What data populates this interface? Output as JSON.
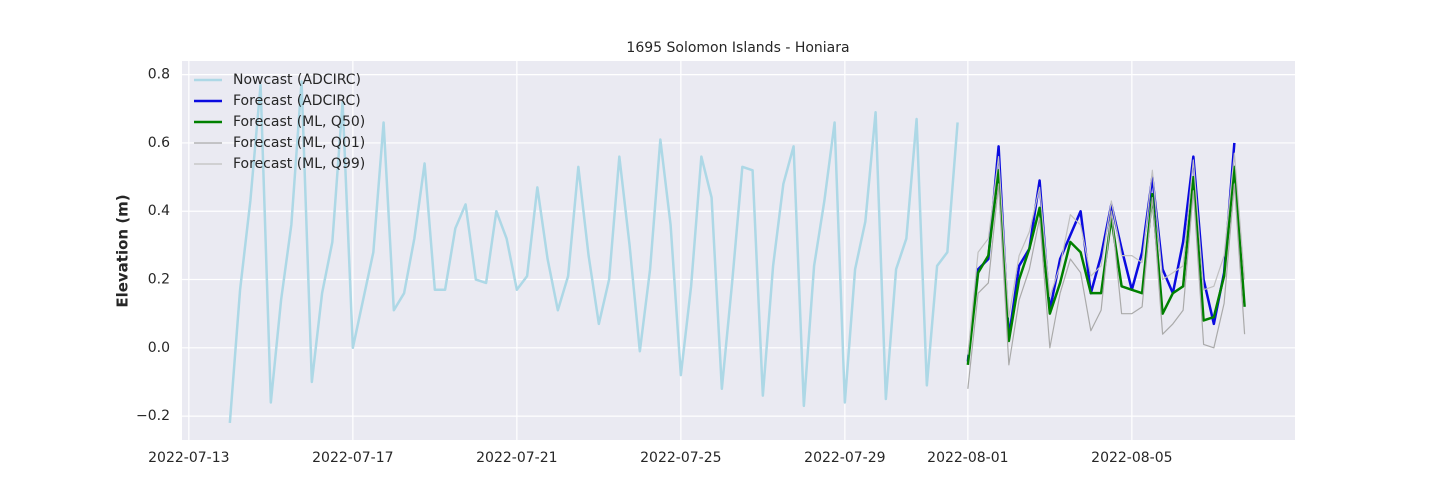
{
  "chart_data": {
    "type": "line",
    "title": "1695 Solomon Islands - Honiara",
    "y_label": "Elevation (m)",
    "xlim": [
      "2022-07-12 20:00",
      "2022-08-08 23:30"
    ],
    "xticks": [
      "2022-07-13",
      "2022-07-17",
      "2022-07-21",
      "2022-07-25",
      "2022-07-29",
      "2022-08-01",
      "2022-08-05"
    ],
    "ylim": [
      -0.27,
      0.84
    ],
    "yticks": [
      {
        "value": -0.2,
        "label": "−0.2"
      },
      {
        "value": 0,
        "label": "0.0"
      },
      0.2,
      0.4,
      0.6,
      0.8
    ],
    "grid": true,
    "legend": "upper-left",
    "series": [
      {
        "name": "Nowcast (ADCIRC)",
        "color": "#add8e6",
        "width": 2.5,
        "x": [
          "2022-07-14 00:00",
          "2022-07-14 06:00",
          "2022-07-14 12:00",
          "2022-07-14 18:00",
          "2022-07-15 00:00",
          "2022-07-15 06:00",
          "2022-07-15 12:00",
          "2022-07-15 18:00",
          "2022-07-16 00:00",
          "2022-07-16 06:00",
          "2022-07-16 12:00",
          "2022-07-16 18:00",
          "2022-07-17 00:00",
          "2022-07-17 06:00",
          "2022-07-17 12:00",
          "2022-07-17 18:00",
          "2022-07-18 00:00",
          "2022-07-18 06:00",
          "2022-07-18 12:00",
          "2022-07-18 18:00",
          "2022-07-19 00:00",
          "2022-07-19 06:00",
          "2022-07-19 12:00",
          "2022-07-19 18:00",
          "2022-07-20 00:00",
          "2022-07-20 06:00",
          "2022-07-20 12:00",
          "2022-07-20 18:00",
          "2022-07-21 00:00",
          "2022-07-21 06:00",
          "2022-07-21 12:00",
          "2022-07-21 18:00",
          "2022-07-22 00:00",
          "2022-07-22 06:00",
          "2022-07-22 12:00",
          "2022-07-22 18:00",
          "2022-07-23 00:00",
          "2022-07-23 06:00",
          "2022-07-23 12:00",
          "2022-07-23 18:00",
          "2022-07-24 00:00",
          "2022-07-24 06:00",
          "2022-07-24 12:00",
          "2022-07-24 18:00",
          "2022-07-25 00:00",
          "2022-07-25 06:00",
          "2022-07-25 12:00",
          "2022-07-25 18:00",
          "2022-07-26 00:00",
          "2022-07-26 06:00",
          "2022-07-26 12:00",
          "2022-07-26 18:00",
          "2022-07-27 00:00",
          "2022-07-27 06:00",
          "2022-07-27 12:00",
          "2022-07-27 18:00",
          "2022-07-28 00:00",
          "2022-07-28 06:00",
          "2022-07-28 12:00",
          "2022-07-28 18:00",
          "2022-07-29 00:00",
          "2022-07-29 06:00",
          "2022-07-29 12:00",
          "2022-07-29 18:00",
          "2022-07-30 00:00",
          "2022-07-30 06:00",
          "2022-07-30 12:00",
          "2022-07-30 18:00",
          "2022-07-31 00:00",
          "2022-07-31 06:00",
          "2022-07-31 12:00",
          "2022-07-31 18:00"
        ],
        "values": [
          -0.22,
          0.17,
          0.43,
          0.77,
          -0.16,
          0.14,
          0.36,
          0.78,
          -0.1,
          0.16,
          0.31,
          0.72,
          0.0,
          0.14,
          0.28,
          0.66,
          0.11,
          0.16,
          0.32,
          0.54,
          0.17,
          0.17,
          0.35,
          0.42,
          0.2,
          0.19,
          0.4,
          0.32,
          0.17,
          0.21,
          0.47,
          0.26,
          0.11,
          0.21,
          0.53,
          0.27,
          0.07,
          0.2,
          0.56,
          0.3,
          -0.01,
          0.23,
          0.61,
          0.36,
          -0.08,
          0.18,
          0.56,
          0.44,
          -0.12,
          0.19,
          0.53,
          0.52,
          -0.14,
          0.24,
          0.48,
          0.59,
          -0.17,
          0.24,
          0.43,
          0.66,
          -0.16,
          0.23,
          0.37,
          0.69,
          -0.15,
          0.23,
          0.32,
          0.67,
          -0.11,
          0.24,
          0.28,
          0.66
        ]
      },
      {
        "name": "Forecast (ADCIRC)",
        "color": "#0a0ae0",
        "width": 2.5,
        "x": [
          "2022-08-01 00:00",
          "2022-08-01 06:00",
          "2022-08-01 12:00",
          "2022-08-01 18:00",
          "2022-08-02 00:00",
          "2022-08-02 06:00",
          "2022-08-02 12:00",
          "2022-08-02 18:00",
          "2022-08-03 00:00",
          "2022-08-03 06:00",
          "2022-08-03 12:00",
          "2022-08-03 18:00",
          "2022-08-04 00:00",
          "2022-08-04 06:00",
          "2022-08-04 12:00",
          "2022-08-04 18:00",
          "2022-08-05 00:00",
          "2022-08-05 06:00",
          "2022-08-05 12:00",
          "2022-08-05 18:00",
          "2022-08-06 00:00",
          "2022-08-06 06:00",
          "2022-08-06 12:00",
          "2022-08-06 18:00",
          "2022-08-07 00:00",
          "2022-08-07 06:00",
          "2022-08-07 12:00",
          "2022-08-07 18:00"
        ],
        "values": [
          -0.04,
          0.23,
          0.26,
          0.59,
          0.03,
          0.24,
          0.29,
          0.49,
          0.11,
          0.26,
          0.33,
          0.4,
          0.16,
          0.27,
          0.42,
          0.29,
          0.17,
          0.28,
          0.5,
          0.23,
          0.16,
          0.31,
          0.56,
          0.2,
          0.07,
          0.22,
          0.6,
          null
        ]
      },
      {
        "name": "Forecast (ML, Q50)",
        "color": "#008000",
        "width": 2.5,
        "x": [
          "2022-08-01 00:00",
          "2022-08-01 06:00",
          "2022-08-01 12:00",
          "2022-08-01 18:00",
          "2022-08-02 00:00",
          "2022-08-02 06:00",
          "2022-08-02 12:00",
          "2022-08-02 18:00",
          "2022-08-03 00:00",
          "2022-08-03 06:00",
          "2022-08-03 12:00",
          "2022-08-03 18:00",
          "2022-08-04 00:00",
          "2022-08-04 06:00",
          "2022-08-04 12:00",
          "2022-08-04 18:00",
          "2022-08-05 00:00",
          "2022-08-05 06:00",
          "2022-08-05 12:00",
          "2022-08-05 18:00",
          "2022-08-06 00:00",
          "2022-08-06 06:00",
          "2022-08-06 12:00",
          "2022-08-06 18:00",
          "2022-08-07 00:00",
          "2022-08-07 06:00",
          "2022-08-07 12:00",
          "2022-08-07 18:00"
        ],
        "values": [
          -0.05,
          0.22,
          0.27,
          0.52,
          0.02,
          0.2,
          0.29,
          0.41,
          0.1,
          0.19,
          0.31,
          0.28,
          0.16,
          0.16,
          0.38,
          0.18,
          0.17,
          0.16,
          0.45,
          0.1,
          0.16,
          0.18,
          0.5,
          0.08,
          0.09,
          0.21,
          0.53,
          0.12
        ]
      },
      {
        "name": "Forecast (ML, Q01)",
        "color": "#aaaaaa",
        "width": 1.2,
        "x": [
          "2022-08-01 00:00",
          "2022-08-01 06:00",
          "2022-08-01 12:00",
          "2022-08-01 18:00",
          "2022-08-02 00:00",
          "2022-08-02 06:00",
          "2022-08-02 12:00",
          "2022-08-02 18:00",
          "2022-08-03 00:00",
          "2022-08-03 06:00",
          "2022-08-03 12:00",
          "2022-08-03 18:00",
          "2022-08-04 00:00",
          "2022-08-04 06:00",
          "2022-08-04 12:00",
          "2022-08-04 18:00",
          "2022-08-05 00:00",
          "2022-08-05 06:00",
          "2022-08-05 12:00",
          "2022-08-05 18:00",
          "2022-08-06 00:00",
          "2022-08-06 06:00",
          "2022-08-06 12:00",
          "2022-08-06 18:00",
          "2022-08-07 00:00",
          "2022-08-07 06:00",
          "2022-08-07 12:00",
          "2022-08-07 18:00"
        ],
        "values": [
          -0.12,
          0.16,
          0.19,
          0.48,
          -0.05,
          0.14,
          0.23,
          0.38,
          0.0,
          0.16,
          0.26,
          0.22,
          0.05,
          0.11,
          0.4,
          0.1,
          0.1,
          0.12,
          0.44,
          0.04,
          0.07,
          0.11,
          0.46,
          0.01,
          0.0,
          0.13,
          0.48,
          0.04
        ]
      },
      {
        "name": "Forecast (ML, Q99)",
        "color": "#c0c0c0",
        "width": 1.2,
        "x": [
          "2022-08-01 00:00",
          "2022-08-01 06:00",
          "2022-08-01 12:00",
          "2022-08-01 18:00",
          "2022-08-02 00:00",
          "2022-08-02 06:00",
          "2022-08-02 12:00",
          "2022-08-02 18:00",
          "2022-08-03 00:00",
          "2022-08-03 06:00",
          "2022-08-03 12:00",
          "2022-08-03 18:00",
          "2022-08-04 00:00",
          "2022-08-04 06:00",
          "2022-08-04 12:00",
          "2022-08-04 18:00",
          "2022-08-05 00:00",
          "2022-08-05 06:00",
          "2022-08-05 12:00",
          "2022-08-05 18:00",
          "2022-08-06 00:00",
          "2022-08-06 06:00",
          "2022-08-06 12:00",
          "2022-08-06 18:00",
          "2022-08-07 00:00",
          "2022-08-07 06:00",
          "2022-08-07 12:00",
          "2022-08-07 18:00"
        ],
        "values": [
          -0.02,
          0.28,
          0.32,
          0.56,
          0.09,
          0.27,
          0.34,
          0.47,
          0.15,
          0.24,
          0.39,
          0.36,
          0.21,
          0.24,
          0.43,
          0.27,
          0.27,
          0.25,
          0.52,
          0.2,
          0.22,
          0.24,
          0.55,
          0.17,
          0.18,
          0.27,
          0.57,
          0.2
        ]
      }
    ]
  }
}
